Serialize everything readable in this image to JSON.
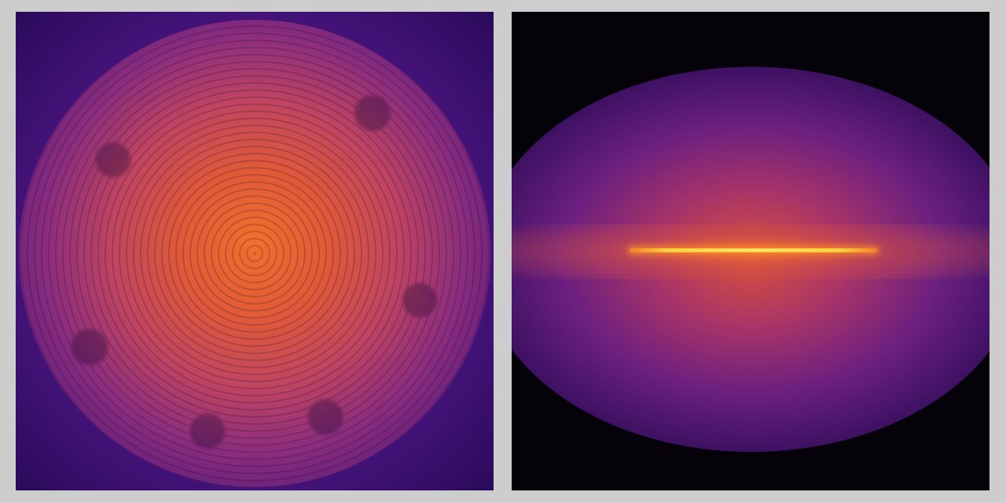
{
  "panels": [
    {
      "view": "face-on",
      "colormap": "inferno",
      "colors": {
        "core": "#f0702c",
        "edge": "#5a1c78",
        "background": "#4a1580"
      }
    },
    {
      "view": "edge-on",
      "colormap": "inferno",
      "colors": {
        "disk": "#ffe060",
        "halo": "#6a1f80",
        "background": "#05020a"
      }
    }
  ],
  "page": {
    "background": "#cdcdcd"
  }
}
